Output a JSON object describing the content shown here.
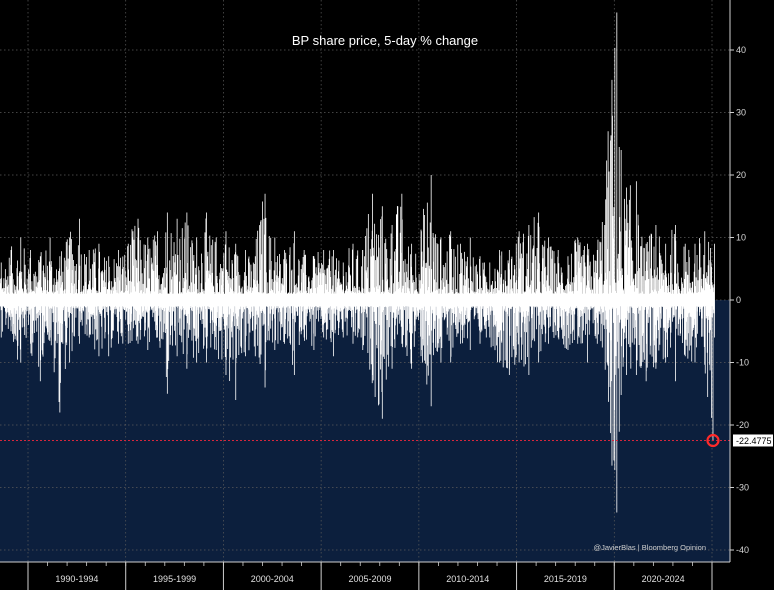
{
  "chart_data": {
    "type": "bar",
    "title": "BP share price, 5-day % change",
    "xlabel": "",
    "ylabel": "",
    "x_periods": [
      "1990-1994",
      "1995-1999",
      "2000-2004",
      "2005-2009",
      "2010-2014",
      "2015-2019",
      "2020-2024"
    ],
    "x_range_years": [
      1988,
      2025.5
    ],
    "ylim": [
      -42,
      47
    ],
    "yticks": [
      40,
      30,
      20,
      10,
      0,
      -10,
      -20,
      -30,
      -40
    ],
    "grid": true,
    "series_description_values": {
      "x": [
        1988.0,
        1988.5,
        1989.0,
        1989.5,
        1990.0,
        1990.5,
        1991.0,
        1991.5,
        1992.0,
        1992.5,
        1993.0,
        1993.5,
        1994.0,
        1994.5,
        1995.0,
        1995.5,
        1996.0,
        1996.5,
        1997.0,
        1997.5,
        1998.0,
        1998.5,
        1999.0,
        1999.5,
        2000.0,
        2000.5,
        2001.0,
        2001.5,
        2002.0,
        2002.5,
        2003.0,
        2003.5,
        2004.0,
        2004.5,
        2005.0,
        2005.5,
        2006.0,
        2006.5,
        2007.0,
        2007.5,
        2008.0,
        2008.5,
        2009.0,
        2009.5,
        2010.0,
        2010.5,
        2011.0,
        2011.5,
        2012.0,
        2012.5,
        2013.0,
        2013.5,
        2014.0,
        2014.5,
        2015.0,
        2015.5,
        2016.0,
        2016.5,
        2017.0,
        2017.5,
        2018.0,
        2018.5,
        2019.0,
        2019.5,
        2020.0,
        2020.5,
        2021.0,
        2021.5,
        2022.0,
        2022.5,
        2023.0,
        2023.5,
        2024.0,
        2024.5,
        2025.0
      ],
      "high": [
        7,
        6,
        8,
        10,
        8,
        7,
        10,
        7,
        10,
        13,
        8,
        9,
        7,
        8,
        9,
        13,
        10,
        11,
        14,
        13,
        14,
        10,
        14,
        10,
        11,
        9,
        8,
        7,
        17,
        10,
        8,
        11,
        8,
        7,
        8,
        8,
        6,
        9,
        8,
        17,
        15,
        12,
        17,
        9,
        11,
        20,
        10,
        11,
        9,
        10,
        7,
        6,
        8,
        8,
        11,
        12,
        14,
        10,
        8,
        7,
        10,
        9,
        8,
        18,
        46,
        18,
        19,
        9,
        12,
        9,
        12,
        9,
        9,
        11,
        9
      ],
      "low": [
        -5,
        -6,
        -5,
        -10,
        -7,
        -13,
        -6,
        -18,
        -10,
        -7,
        -6,
        -9,
        -9,
        -7,
        -7,
        -7,
        -8,
        -6,
        -15,
        -9,
        -11,
        -10,
        -10,
        -8,
        -12,
        -16,
        -9,
        -9,
        -14,
        -8,
        -7,
        -12,
        -6,
        -8,
        -6,
        -9,
        -6,
        -7,
        -8,
        -12,
        -19,
        -11,
        -7,
        -11,
        -8,
        -17,
        -10,
        -10,
        -7,
        -8,
        -7,
        -6,
        -10,
        -12,
        -10,
        -12,
        -10,
        -7,
        -6,
        -8,
        -7,
        -10,
        -7,
        -10,
        -34,
        -12,
        -12,
        -13,
        -11,
        -10,
        -13,
        -9,
        -10,
        -9,
        -22.4775
      ]
    },
    "last_value": -22.4775,
    "last_value_label": "-22.4775",
    "reference_line": -22.4775,
    "credit": "@JavierBlas | Bloomberg Opinion"
  },
  "colors": {
    "background": "#000000",
    "fill_below": "#0c1f3d",
    "spikes": "#ffffff",
    "reference_line": "#d7263d",
    "marker": "#ff2a2a",
    "grid": "#5a5a5a"
  }
}
